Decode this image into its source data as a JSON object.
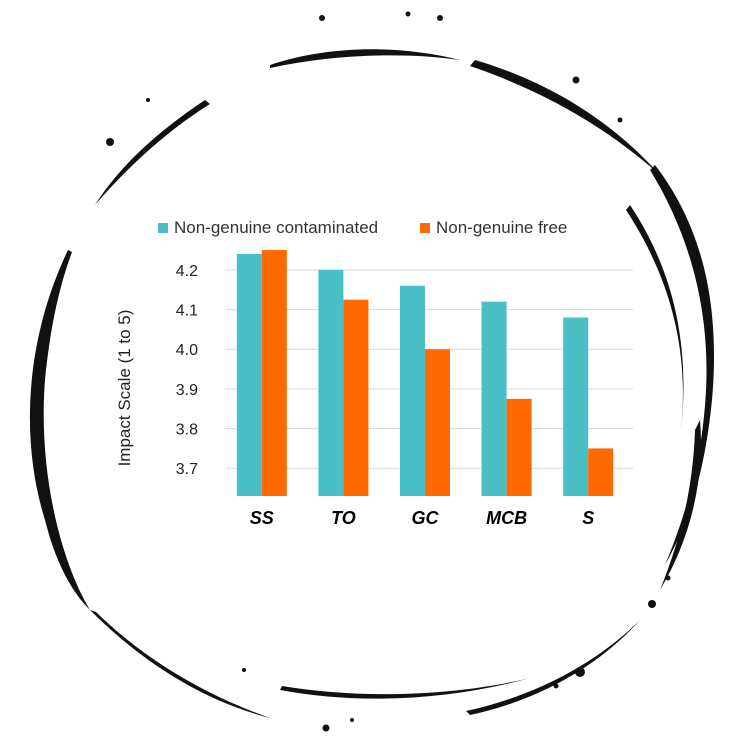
{
  "chart_data": {
    "type": "bar",
    "title": "",
    "xlabel": "",
    "ylabel": "Impact Scale (1 to 5)",
    "categories": [
      "SS",
      "TO",
      "GC",
      "MCB",
      "S"
    ],
    "series": [
      {
        "name": "Non-genuine contaminated",
        "color": "#4bbfc6",
        "values": [
          4.24,
          4.2,
          4.16,
          4.12,
          4.08
        ]
      },
      {
        "name": "Non-genuine free",
        "color": "#ff6a00",
        "values": [
          4.25,
          4.125,
          4.0,
          3.875,
          3.75
        ]
      }
    ],
    "yticks": [
      "3.7",
      "3.8",
      "3.9",
      "4.0",
      "4.1",
      "4.2"
    ],
    "ylim": [
      3.63,
      4.23
    ],
    "grid": true,
    "legend": "top",
    "frame": "brush-stroke circle"
  }
}
